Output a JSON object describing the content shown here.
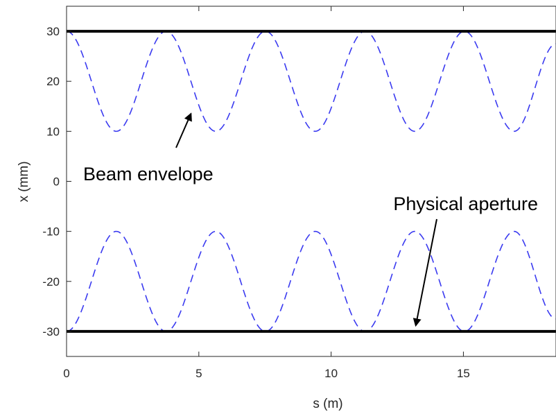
{
  "chart_data": {
    "type": "line",
    "title": "",
    "xlabel": "s (m)",
    "ylabel": "x (mm)",
    "xlim": [
      0,
      18.5
    ],
    "ylim": [
      -35,
      35
    ],
    "xticks": [
      0,
      5,
      10,
      15
    ],
    "yticks": [
      30,
      20,
      10,
      0,
      -10,
      -20,
      -30
    ],
    "grid": false,
    "series": [
      {
        "role": "upper envelope",
        "style": "dashed",
        "color": "#3a3af0",
        "x": [
          0,
          1.88,
          3.76,
          5.64,
          7.52,
          9.4,
          11.28,
          13.16,
          15.04,
          16.92,
          18.5
        ],
        "y": [
          30,
          10,
          30,
          10,
          30,
          10,
          30,
          10,
          30,
          10,
          27.5
        ]
      },
      {
        "role": "lower envelope",
        "style": "dashed",
        "color": "#3a3af0",
        "x": [
          0,
          1.88,
          3.76,
          5.64,
          7.52,
          9.4,
          11.28,
          13.16,
          15.04,
          16.92,
          18.5
        ],
        "y": [
          -30,
          -10,
          -30,
          -10,
          -30,
          -10,
          -30,
          -10,
          -30,
          -10,
          -27.5
        ]
      },
      {
        "role": "upper aperture",
        "style": "solid",
        "color": "#000000",
        "x": [
          0,
          18.5
        ],
        "y": [
          30,
          30
        ]
      },
      {
        "role": "lower aperture",
        "style": "solid",
        "color": "#000000",
        "x": [
          0,
          18.5
        ],
        "y": [
          -30,
          -30
        ]
      }
    ],
    "annotations": [
      {
        "id": "beam",
        "text": "Beam envelope",
        "arrow_to": {
          "x": 4.7,
          "y": 13.5
        }
      },
      {
        "id": "aperture",
        "text": "Physical aperture",
        "arrow_to": {
          "x": 13.2,
          "y": -28.8
        }
      }
    ]
  }
}
